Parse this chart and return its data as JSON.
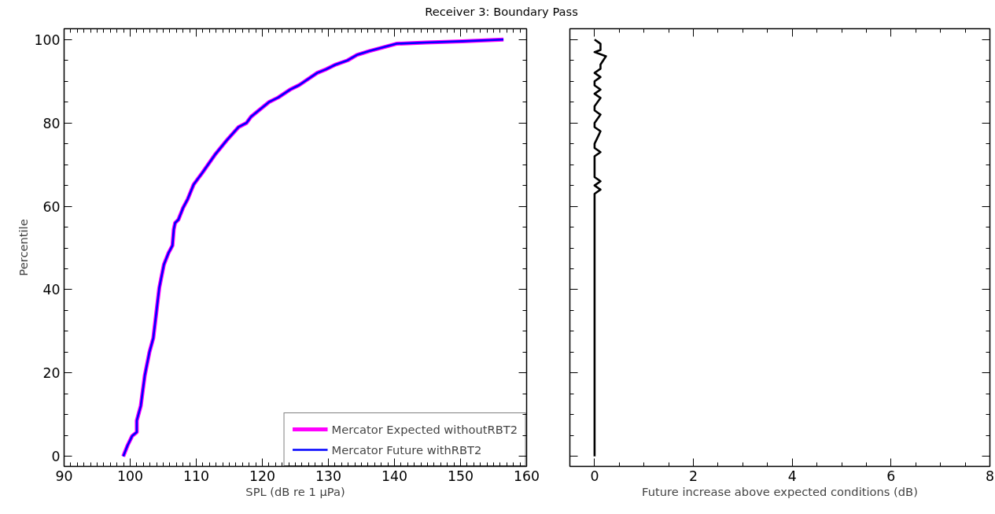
{
  "chart_data": [
    {
      "type": "line",
      "title": "Receiver 3: Boundary Pass",
      "xlabel": "SPL (dB re 1 μPa)",
      "ylabel": "Percentile",
      "xlim": [
        90,
        160
      ],
      "xticks": [
        90,
        100,
        110,
        120,
        130,
        140,
        150,
        160
      ],
      "ylim": [
        -2.4,
        102.6
      ],
      "yticks": [
        0,
        20,
        40,
        60,
        80,
        100
      ],
      "grid": false,
      "legend": "bottom right",
      "line_style": "solid",
      "marker": "none",
      "series": [
        {
          "name": "Mercator Expected withoutRBT2",
          "color": "#ff00ff",
          "x": [
            98.95,
            99.6,
            100.3,
            101.0,
            101.0,
            101.6,
            102.2,
            102.9,
            103.5,
            104.4,
            105.1,
            105.8,
            106.4,
            106.6,
            106.8,
            107.3,
            108.0,
            108.7,
            109.6,
            110.9,
            112.8,
            114.6,
            116.4,
            117.6,
            118.3,
            121.0,
            122.4,
            124.2,
            125.6,
            128.3,
            129.7,
            131.1,
            132.9,
            134.3,
            136.1,
            140.3,
            144.8,
            150.3,
            156.5
          ],
          "values": [
            0,
            2.6,
            4.9,
            5.8,
            8.6,
            12.1,
            19.3,
            24.9,
            28.4,
            40.4,
            46,
            48.8,
            50.6,
            54.5,
            56,
            56.8,
            59.6,
            61.7,
            65.2,
            68,
            72.3,
            75.8,
            79,
            80,
            81.5,
            85,
            86.1,
            88,
            89.1,
            92,
            92.9,
            94,
            95,
            96.3,
            97.2,
            99,
            99.3,
            99.6,
            100
          ]
        },
        {
          "name": "Mercator Future withRBT2",
          "color": "#0000ff",
          "x": [
            98.95,
            99.6,
            100.3,
            101.0,
            101.0,
            101.6,
            102.2,
            102.9,
            103.5,
            104.4,
            105.1,
            105.8,
            106.4,
            106.6,
            106.8,
            107.3,
            108.0,
            108.7,
            109.6,
            110.9,
            112.8,
            114.6,
            116.4,
            117.6,
            118.3,
            121.0,
            122.4,
            124.2,
            125.6,
            128.3,
            129.7,
            131.1,
            132.9,
            134.3,
            136.1,
            140.3,
            144.8,
            150.3,
            156.5
          ],
          "values": [
            0,
            2.6,
            4.9,
            5.8,
            8.6,
            12.1,
            19.3,
            24.9,
            28.4,
            40.4,
            46,
            48.8,
            50.6,
            54.5,
            56,
            56.8,
            59.6,
            61.7,
            65.2,
            68,
            72.3,
            75.8,
            79,
            80,
            81.5,
            85,
            86.1,
            88,
            89.1,
            92,
            92.9,
            94,
            95,
            96.3,
            97.2,
            99,
            99.3,
            99.6,
            100
          ]
        }
      ]
    },
    {
      "type": "line",
      "xlabel": "Future increase above expected conditions (dB)",
      "xlim": [
        -0.5,
        8
      ],
      "xticks": [
        0,
        2,
        4,
        6,
        8
      ],
      "ylim": [
        -2.4,
        102.6
      ],
      "yticks": [
        0,
        20,
        40,
        60,
        80,
        100
      ],
      "grid": false,
      "tick_labels": "x",
      "legend": false,
      "line_style": "solid",
      "marker": "none",
      "series": [
        {
          "color": "#000000",
          "x": [
            0,
            0,
            0.12,
            0,
            0.12,
            0,
            0,
            0.12,
            0,
            0,
            0.12,
            0,
            0,
            0.12,
            0,
            0,
            0.12,
            0,
            0.12,
            0,
            0,
            0.12,
            0,
            0.12,
            0.12,
            0.23,
            0,
            0.12,
            0.12,
            0
          ],
          "values": [
            0,
            63,
            64,
            65,
            66,
            67,
            72,
            73,
            74,
            75,
            78,
            79,
            80,
            82,
            83,
            84,
            86,
            87,
            88,
            89,
            90,
            91,
            92,
            93,
            94,
            96,
            97,
            97.5,
            99,
            100
          ]
        }
      ]
    }
  ]
}
